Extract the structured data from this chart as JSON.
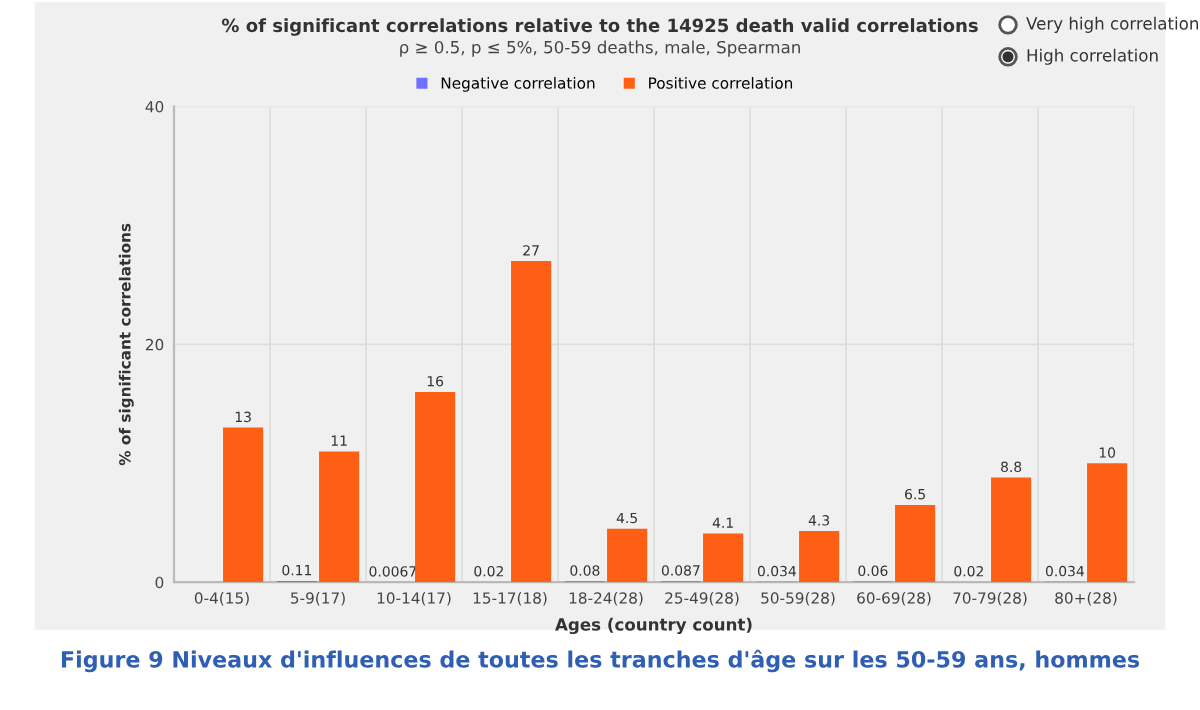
{
  "chart_data": {
    "type": "bar",
    "title": "% of significant correlations relative to the 14925 death valid correlations",
    "subtitle": "ρ ≥ 0.5, p ≤ 5%, 50-59 deaths, male, Spearman",
    "xlabel": "Ages (country count)",
    "ylabel": "% of significant correlations",
    "categories": [
      "0-4(15)",
      "5-9(17)",
      "10-14(17)",
      "15-17(18)",
      "18-24(28)",
      "25-49(28)",
      "50-59(28)",
      "60-69(28)",
      "70-79(28)",
      "80+(28)"
    ],
    "series": [
      {
        "name": "Negative correlation",
        "color": "#7070ff",
        "values": [
          null,
          0.11,
          0.0067,
          0.02,
          0.08,
          0.087,
          0.034,
          0.06,
          0.02,
          0.034
        ]
      },
      {
        "name": "Positive correlation",
        "color": "#ff5f15",
        "values": [
          13,
          11,
          16,
          27,
          4.5,
          4.1,
          4.3,
          6.5,
          8.8,
          10
        ]
      }
    ],
    "ylim": [
      0,
      40
    ],
    "yticks": [
      0,
      20,
      40
    ],
    "grid": true,
    "legend": "top",
    "data_labels": true,
    "annotations": [
      "Very high correlation",
      "High correlation",
      "Figure 9 Niveaux d'influences de toutes les tranches d'âge sur les 50-59 ans, hommes"
    ]
  }
}
